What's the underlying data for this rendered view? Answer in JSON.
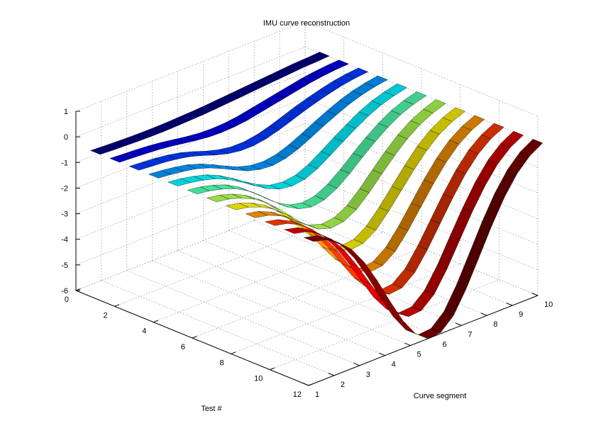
{
  "chart_data": {
    "type": "surface-ribbons",
    "title": "IMU curve reconstruction",
    "xlabel": "Curve segment",
    "ylabel": "Test #",
    "zlabel": "",
    "xlim": [
      1,
      10
    ],
    "ylim": [
      0,
      12
    ],
    "zlim": [
      -6,
      1
    ],
    "x_ticks": [
      "1",
      "2",
      "3",
      "4",
      "5",
      "6",
      "7",
      "8",
      "9",
      "10"
    ],
    "y_ticks": [
      "0",
      "2",
      "4",
      "6",
      "8",
      "10",
      "12"
    ],
    "z_ticks": [
      "1",
      "0",
      "-1",
      "-2",
      "-3",
      "-4",
      "-5",
      "-6"
    ],
    "grid": "on",
    "colormap": "jet",
    "ribbon_width": 0.5,
    "x": [
      1,
      1.5,
      2,
      2.5,
      3,
      3.5,
      4,
      4.5,
      5,
      5.5,
      6,
      6.5,
      7,
      7.5,
      8,
      8.5,
      9,
      9.5,
      10
    ],
    "series": [
      {
        "test": 1,
        "z": [
          -0.3,
          -0.33,
          -0.35,
          -0.37,
          -0.38,
          -0.38,
          -0.37,
          -0.35,
          -0.33,
          -0.3,
          -0.26,
          -0.22,
          -0.18,
          -0.14,
          -0.1,
          -0.06,
          -0.02,
          0.0,
          0.03
        ]
      },
      {
        "test": 2,
        "z": [
          -0.3,
          -0.33,
          -0.36,
          -0.4,
          -0.46,
          -0.54,
          -0.62,
          -0.68,
          -0.7,
          -0.68,
          -0.62,
          -0.52,
          -0.42,
          -0.32,
          -0.22,
          -0.12,
          -0.05,
          0.0,
          0.03
        ]
      },
      {
        "test": 3,
        "z": [
          -0.3,
          -0.34,
          -0.38,
          -0.45,
          -0.55,
          -0.7,
          -0.88,
          -1.02,
          -1.1,
          -1.1,
          -1.02,
          -0.88,
          -0.7,
          -0.52,
          -0.36,
          -0.22,
          -0.1,
          -0.02,
          0.03
        ]
      },
      {
        "test": 4,
        "z": [
          -0.3,
          -0.35,
          -0.42,
          -0.52,
          -0.68,
          -0.9,
          -1.15,
          -1.38,
          -1.52,
          -1.56,
          -1.48,
          -1.3,
          -1.06,
          -0.8,
          -0.56,
          -0.34,
          -0.17,
          -0.05,
          0.03
        ]
      },
      {
        "test": 5,
        "z": [
          -0.3,
          -0.36,
          -0.46,
          -0.6,
          -0.82,
          -1.12,
          -1.45,
          -1.76,
          -1.98,
          -2.05,
          -1.98,
          -1.76,
          -1.44,
          -1.1,
          -0.78,
          -0.48,
          -0.25,
          -0.09,
          0.03
        ]
      },
      {
        "test": 6,
        "z": [
          -0.3,
          -0.37,
          -0.5,
          -0.68,
          -0.96,
          -1.34,
          -1.76,
          -2.16,
          -2.44,
          -2.56,
          -2.48,
          -2.22,
          -1.84,
          -1.4,
          -0.98,
          -0.62,
          -0.32,
          -0.12,
          0.03
        ]
      },
      {
        "test": 7,
        "z": [
          -0.3,
          -0.38,
          -0.54,
          -0.78,
          -1.12,
          -1.58,
          -2.08,
          -2.56,
          -2.92,
          -3.08,
          -3.02,
          -2.74,
          -2.28,
          -1.74,
          -1.22,
          -0.76,
          -0.4,
          -0.15,
          0.03
        ]
      },
      {
        "test": 8,
        "z": [
          -0.3,
          -0.39,
          -0.58,
          -0.86,
          -1.28,
          -1.82,
          -2.42,
          -2.98,
          -3.42,
          -3.62,
          -3.56,
          -3.24,
          -2.7,
          -2.08,
          -1.46,
          -0.9,
          -0.47,
          -0.17,
          0.03
        ]
      },
      {
        "test": 9,
        "z": [
          -0.3,
          -0.4,
          -0.62,
          -0.96,
          -1.44,
          -2.06,
          -2.76,
          -3.42,
          -3.92,
          -4.18,
          -4.12,
          -3.76,
          -3.14,
          -2.42,
          -1.7,
          -1.06,
          -0.55,
          -0.2,
          0.03
        ]
      },
      {
        "test": 10,
        "z": [
          -0.3,
          -0.41,
          -0.66,
          -1.04,
          -1.6,
          -2.3,
          -3.1,
          -3.86,
          -4.44,
          -4.74,
          -4.68,
          -4.28,
          -3.58,
          -2.76,
          -1.94,
          -1.2,
          -0.62,
          -0.22,
          0.03
        ]
      },
      {
        "test": 11,
        "z": [
          -0.3,
          -0.42,
          -0.7,
          -1.12,
          -1.76,
          -2.56,
          -3.44,
          -4.3,
          -4.96,
          -5.3,
          -5.26,
          -4.82,
          -4.04,
          -3.1,
          -2.18,
          -1.36,
          -0.7,
          -0.25,
          0.03
        ]
      },
      {
        "test": 12,
        "z": [
          -0.3,
          -0.43,
          -0.74,
          -1.2,
          -1.9,
          -2.8,
          -3.8,
          -4.74,
          -5.46,
          -5.85,
          -5.8,
          -5.34,
          -4.48,
          -3.46,
          -2.42,
          -1.5,
          -0.77,
          -0.27,
          0.03
        ]
      }
    ]
  }
}
